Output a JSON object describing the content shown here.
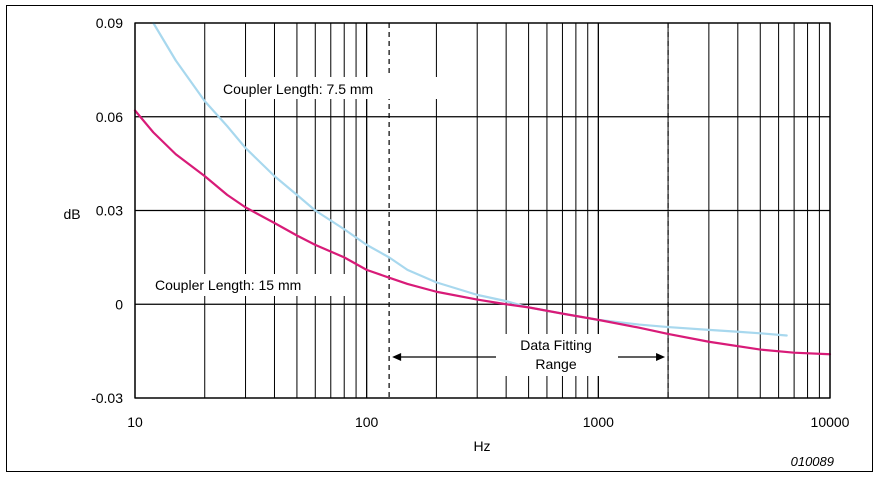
{
  "chart_data": {
    "type": "line",
    "x_scale": "log",
    "xlim": [
      10,
      10000
    ],
    "ylim": [
      -0.03,
      0.09
    ],
    "xlabel": "Hz",
    "ylabel": "dB",
    "x_ticks": [
      10,
      100,
      1000,
      10000
    ],
    "x_tick_labels": [
      "10",
      "100",
      "1000",
      "10000"
    ],
    "y_ticks": [
      -0.03,
      0,
      0.03,
      0.06,
      0.09
    ],
    "y_tick_labels": [
      "-0.03",
      "0",
      "0.03",
      "0.06",
      "0.09"
    ],
    "grid": true,
    "figure_id": "010089",
    "series": [
      {
        "label": "Coupler Length: 7.5 mm",
        "color": "#a8d8ee",
        "x": [
          12,
          15,
          20,
          25,
          30,
          40,
          50,
          60,
          80,
          100,
          125,
          150,
          200,
          300,
          400,
          500,
          700,
          1000,
          1500,
          2000,
          3000,
          4000,
          5000,
          6500
        ],
        "y": [
          0.09,
          0.078,
          0.065,
          0.057,
          0.05,
          0.041,
          0.035,
          0.03,
          0.024,
          0.019,
          0.015,
          0.011,
          0.007,
          0.003,
          0.001,
          -0.001,
          -0.003,
          -0.005,
          -0.0065,
          -0.0073,
          -0.0082,
          -0.0088,
          -0.0093,
          -0.01
        ]
      },
      {
        "label": "Coupler Length: 15 mm",
        "color": "#d81b78",
        "x": [
          10,
          12,
          15,
          20,
          25,
          30,
          40,
          50,
          60,
          80,
          100,
          125,
          150,
          200,
          300,
          400,
          500,
          700,
          1000,
          1500,
          2000,
          3000,
          5000,
          7000,
          10000
        ],
        "y": [
          0.062,
          0.055,
          0.048,
          0.041,
          0.035,
          0.031,
          0.026,
          0.022,
          0.019,
          0.015,
          0.011,
          0.0085,
          0.0065,
          0.004,
          0.0015,
          0,
          -0.001,
          -0.003,
          -0.005,
          -0.0075,
          -0.0095,
          -0.012,
          -0.0145,
          -0.0155,
          -0.016
        ]
      }
    ],
    "annotations": {
      "curve_label_a": "Coupler Length: 7.5 mm",
      "curve_label_b": "Coupler Length: 15 mm",
      "fit_range_line1": "Data Fitting",
      "fit_range_line2": "Range",
      "fit_range_x": [
        125,
        2000
      ]
    }
  }
}
